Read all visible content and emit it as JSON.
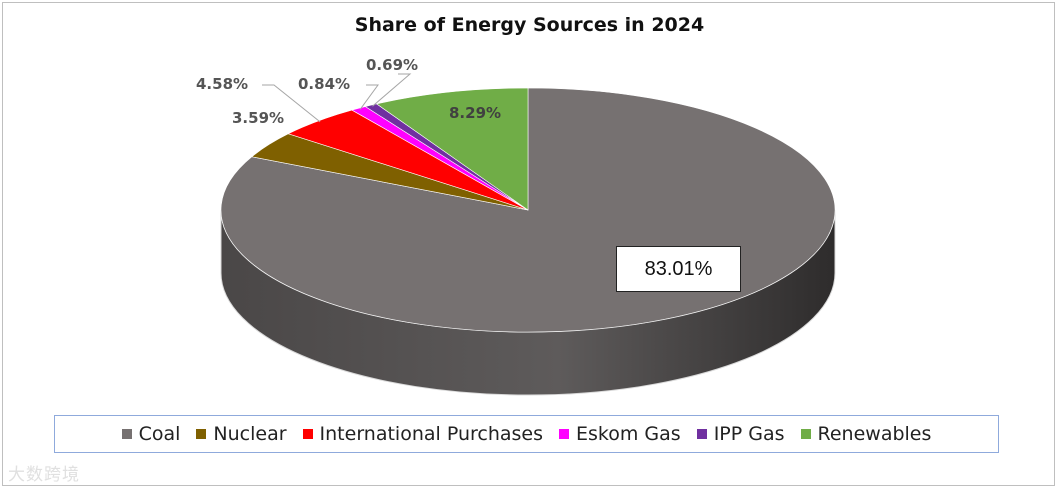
{
  "chart_data": {
    "type": "pie",
    "title": "Share of Energy Sources in 2024",
    "categories": [
      "Coal",
      "Nuclear",
      "International Purchases",
      "Eskom Gas",
      "IPP Gas",
      "Renewables"
    ],
    "values": [
      83.01,
      3.59,
      4.58,
      0.84,
      0.69,
      8.29
    ],
    "labels": [
      "83.01%",
      "3.59%",
      "4.58%",
      "0.84%",
      "0.69%",
      "8.29%"
    ],
    "colors": [
      "#767171",
      "#7f6000",
      "#ff0000",
      "#ff00ff",
      "#7030a0",
      "#70ad47"
    ],
    "legend_position": "bottom",
    "style": "3d"
  },
  "watermark": "大数跨境"
}
